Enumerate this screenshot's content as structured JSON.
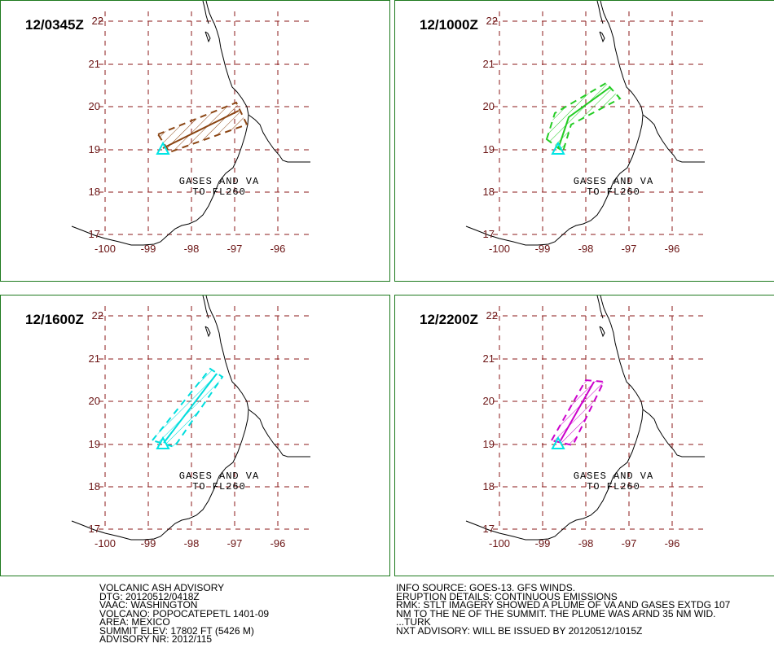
{
  "map": {
    "lat_ticks": [
      "22",
      "21",
      "20",
      "19",
      "18",
      "17"
    ],
    "lon_ticks": [
      "-100",
      "-99",
      "-98",
      "-97",
      "-96"
    ],
    "grid_color": "#8b1a1a",
    "coast_color": "#000000",
    "volcano_marker_color": "#00e5e5"
  },
  "panels": [
    {
      "title": "12/0345Z",
      "plume_text_1": "GASES AND VA",
      "plume_text_2": "TO FL260",
      "color": "#8b4513"
    },
    {
      "title": "12/1000Z",
      "plume_text_1": "GASES AND VA",
      "plume_text_2": "TO FL260",
      "color": "#22cc22"
    },
    {
      "title": "12/1600Z",
      "plume_text_1": "GASES AND VA",
      "plume_text_2": "TO FL260",
      "color": "#00dddd"
    },
    {
      "title": "12/2200Z",
      "plume_text_1": "GASES AND VA",
      "plume_text_2": "TO FL260",
      "color": "#cc00cc"
    }
  ],
  "advisory_left": [
    "VOLCANIC ASH ADVISORY",
    "DTG: 20120512/0418Z",
    "VAAC: WASHINGTON",
    "VOLCANO: POPOCATEPETL 1401-09",
    "AREA: MEXICO",
    "SUMMIT ELEV: 17802 FT (5426 M)",
    "ADVISORY NR: 2012/115"
  ],
  "advisory_right": [
    "INFO SOURCE: GOES-13. GFS WINDS.",
    "ERUPTION DETAILS: CONTINUOUS EMISSIONS",
    "RMK: STLT IMAGERY SHOWED A PLUME OF VA AND GASES EXTDG 107",
    "NM TO THE NE OF THE SUMMIT. THE PLUME WAS ARND 35 NM WID.",
    "...TURK",
    "NXT ADVISORY: WILL BE ISSUED BY 20120512/1015Z"
  ]
}
